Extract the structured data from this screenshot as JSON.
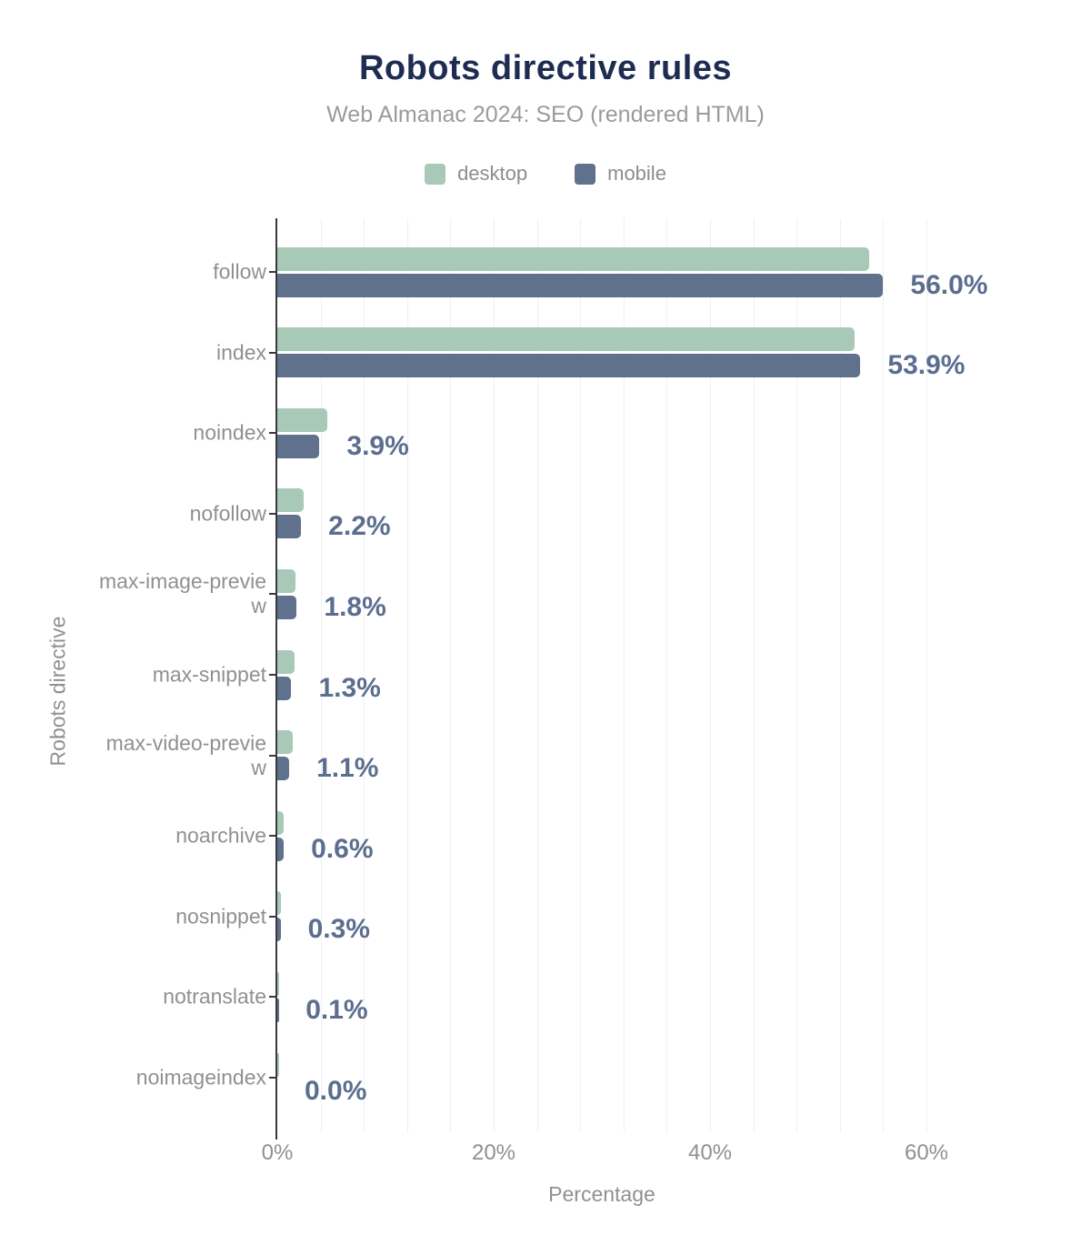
{
  "header": {
    "title": "Robots directive rules",
    "subtitle": "Web Almanac 2024: SEO (rendered HTML)"
  },
  "legend": {
    "items": [
      {
        "label": "desktop",
        "color": "#a8c9b7"
      },
      {
        "label": "mobile",
        "color": "#5f718c"
      }
    ]
  },
  "axes": {
    "x_title": "Percentage",
    "y_title": "Robots directive",
    "x_tick_labels": [
      "0%",
      "20%",
      "40%",
      "60%"
    ],
    "x_tick_values": [
      0,
      20,
      40,
      60
    ]
  },
  "colors": {
    "desktop": "#a8c9b7",
    "mobile": "#5f718c",
    "title_text": "#1e2c51",
    "value_label_text": "#5b6e8f",
    "muted_text": "#8e9094",
    "gridline": "#f0f0f3",
    "axis_line": "#37393c"
  },
  "chart_data": {
    "type": "bar",
    "orientation": "horizontal",
    "title": "Robots directive rules",
    "subtitle": "Web Almanac 2024: SEO (rendered HTML)",
    "xlabel": "Percentage",
    "ylabel": "Robots directive",
    "xlim": [
      0,
      60
    ],
    "grid": "vertical, minor step 4%",
    "legend_position": "top",
    "categories": [
      "follow",
      "index",
      "noindex",
      "nofollow",
      "max-image-preview",
      "max-snippet",
      "max-video-preview",
      "noarchive",
      "nosnippet",
      "notranslate",
      "noimageindex"
    ],
    "category_display_lines": [
      [
        "follow"
      ],
      [
        "index"
      ],
      [
        "noindex"
      ],
      [
        "nofollow"
      ],
      [
        "max-image-previe",
        "w"
      ],
      [
        "max-snippet"
      ],
      [
        "max-video-previe",
        "w"
      ],
      [
        "noarchive"
      ],
      [
        "nosnippet"
      ],
      [
        "notranslate"
      ],
      [
        "noimageindex"
      ]
    ],
    "series": [
      {
        "name": "desktop",
        "color": "#a8c9b7",
        "values": [
          54.7,
          53.4,
          4.6,
          2.4,
          1.7,
          1.6,
          1.4,
          0.6,
          0.3,
          0.1,
          0.1
        ]
      },
      {
        "name": "mobile",
        "color": "#5f718c",
        "values": [
          56.0,
          53.9,
          3.9,
          2.2,
          1.8,
          1.3,
          1.1,
          0.6,
          0.3,
          0.1,
          0.0
        ]
      }
    ],
    "data_labels": [
      "56.0%",
      "53.9%",
      "3.9%",
      "2.2%",
      "1.8%",
      "1.3%",
      "1.1%",
      "0.6%",
      "0.3%",
      "0.1%",
      "0.0%"
    ],
    "data_labels_show_series": "mobile"
  }
}
